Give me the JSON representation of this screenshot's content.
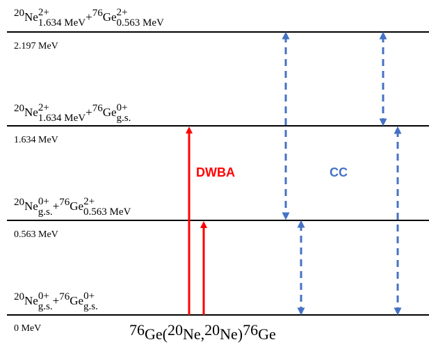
{
  "colors": {
    "dwba_arrow": "#ff0000",
    "cc_arrow": "#4472c4",
    "level_line": "#000000"
  },
  "levels": [
    {
      "energy": "2.197 MeV",
      "state": {
        "ne_mass": "20",
        "ne_sym": "Ne",
        "ne_spin": "2+",
        "ne_sub": "1.634 MeV",
        "plus": "+",
        "ge_mass": "76",
        "ge_sym": "Ge",
        "ge_spin": "2+",
        "ge_sub": "0.563 MeV"
      }
    },
    {
      "energy": "1.634 MeV",
      "state": {
        "ne_mass": "20",
        "ne_sym": "Ne",
        "ne_spin": "2+",
        "ne_sub": "1.634 MeV",
        "plus": "+",
        "ge_mass": "76",
        "ge_sym": "Ge",
        "ge_spin": "0+",
        "ge_sub": "g.s."
      }
    },
    {
      "energy": "0.563 MeV",
      "state": {
        "ne_mass": "20",
        "ne_sym": "Ne",
        "ne_spin": "0+",
        "ne_sub": "g.s.",
        "plus": "+",
        "ge_mass": "76",
        "ge_sym": "Ge",
        "ge_spin": "2+",
        "ge_sub": "0.563 MeV"
      }
    },
    {
      "energy": "0 MeV",
      "state": {
        "ne_mass": "20",
        "ne_sym": "Ne",
        "ne_spin": "0+",
        "ne_sub": "g.s.",
        "plus": "+",
        "ge_mass": "76",
        "ge_sym": "Ge",
        "ge_spin": "0+",
        "ge_sub": "g.s."
      }
    }
  ],
  "labels": {
    "dwba": "DWBA",
    "cc": "CC"
  },
  "reaction": {
    "target_mass": "76",
    "target": "Ge",
    "open": "(",
    "proj_mass": "20",
    "projectile": "Ne",
    "comma": ",",
    "ejectile_mass": "20",
    "ejectile": "Ne",
    "close": ")",
    "residual_mass": "76",
    "residual": "Ge"
  }
}
